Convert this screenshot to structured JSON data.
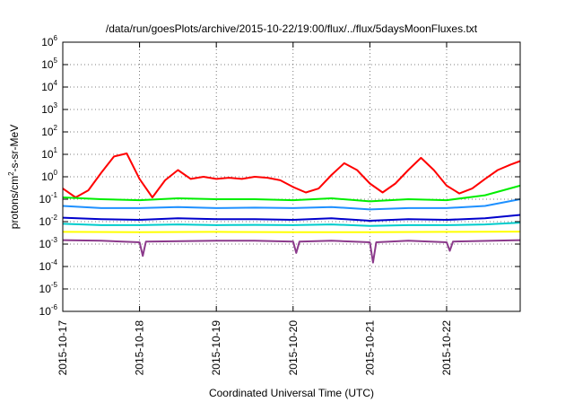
{
  "chart_data": {
    "type": "line",
    "title": "/data/run/goesPlots/archive/2015-10-22/19:00/flux/../flux/5daysMoonFluxes.txt",
    "xlabel": "Coordinated Universal Time (UTC)",
    "ylabel": "protons/cm2-s-sr-MeV",
    "yscale": "log",
    "ylim": [
      1e-06,
      1000000.0
    ],
    "xlim": [
      "2015-10-17",
      "2015-10-22 23:00"
    ],
    "x_ticks": [
      "2015-10-17",
      "2015-10-18",
      "2015-10-19",
      "2015-10-20",
      "2015-10-21",
      "2015-10-22"
    ],
    "y_ticks": [
      {
        "base": "10",
        "exp": "-6"
      },
      {
        "base": "10",
        "exp": "-5"
      },
      {
        "base": "10",
        "exp": "-4"
      },
      {
        "base": "10",
        "exp": "-3"
      },
      {
        "base": "10",
        "exp": "-2"
      },
      {
        "base": "10",
        "exp": "-1"
      },
      {
        "base": "10",
        "exp": "0"
      },
      {
        "base": "10",
        "exp": "1"
      },
      {
        "base": "10",
        "exp": "2"
      },
      {
        "base": "10",
        "exp": "3"
      },
      {
        "base": "10",
        "exp": "4"
      },
      {
        "base": "10",
        "exp": "5"
      },
      {
        "base": "10",
        "exp": "6"
      }
    ],
    "grid": true,
    "series": [
      {
        "color": "#ff0000",
        "points": [
          [
            "2015-10-17 00:00",
            0.3
          ],
          [
            "2015-10-17 04:00",
            0.12
          ],
          [
            "2015-10-17 08:00",
            0.25
          ],
          [
            "2015-10-17 12:00",
            1.5
          ],
          [
            "2015-10-17 16:00",
            8
          ],
          [
            "2015-10-17 20:00",
            11
          ],
          [
            "2015-10-18 00:00",
            0.8
          ],
          [
            "2015-10-18 04:00",
            0.12
          ],
          [
            "2015-10-18 08:00",
            0.7
          ],
          [
            "2015-10-18 12:00",
            2
          ],
          [
            "2015-10-18 16:00",
            0.8
          ],
          [
            "2015-10-18 20:00",
            1
          ],
          [
            "2015-10-19 00:00",
            0.8
          ],
          [
            "2015-10-19 04:00",
            0.9
          ],
          [
            "2015-10-19 08:00",
            0.8
          ],
          [
            "2015-10-19 12:00",
            1.0
          ],
          [
            "2015-10-19 16:00",
            0.9
          ],
          [
            "2015-10-19 20:00",
            0.7
          ],
          [
            "2015-10-20 00:00",
            0.35
          ],
          [
            "2015-10-20 04:00",
            0.2
          ],
          [
            "2015-10-20 08:00",
            0.3
          ],
          [
            "2015-10-20 12:00",
            1.2
          ],
          [
            "2015-10-20 16:00",
            4
          ],
          [
            "2015-10-20 20:00",
            2
          ],
          [
            "2015-10-21 00:00",
            0.5
          ],
          [
            "2015-10-21 04:00",
            0.2
          ],
          [
            "2015-10-21 08:00",
            0.5
          ],
          [
            "2015-10-21 12:00",
            2
          ],
          [
            "2015-10-21 16:00",
            7
          ],
          [
            "2015-10-21 20:00",
            2
          ],
          [
            "2015-10-22 00:00",
            0.4
          ],
          [
            "2015-10-22 04:00",
            0.18
          ],
          [
            "2015-10-22 08:00",
            0.3
          ],
          [
            "2015-10-22 12:00",
            0.8
          ],
          [
            "2015-10-22 16:00",
            2
          ],
          [
            "2015-10-22 20:00",
            3.5
          ],
          [
            "2015-10-22 23:00",
            5
          ]
        ]
      },
      {
        "color": "#00ee00",
        "points": [
          [
            "2015-10-17 00:00",
            0.12
          ],
          [
            "2015-10-17 12:00",
            0.1
          ],
          [
            "2015-10-18 00:00",
            0.09
          ],
          [
            "2015-10-18 12:00",
            0.11
          ],
          [
            "2015-10-19 00:00",
            0.1
          ],
          [
            "2015-10-19 12:00",
            0.1
          ],
          [
            "2015-10-20 00:00",
            0.09
          ],
          [
            "2015-10-20 12:00",
            0.11
          ],
          [
            "2015-10-21 00:00",
            0.08
          ],
          [
            "2015-10-21 12:00",
            0.1
          ],
          [
            "2015-10-22 00:00",
            0.09
          ],
          [
            "2015-10-22 12:00",
            0.15
          ],
          [
            "2015-10-22 23:00",
            0.4
          ]
        ]
      },
      {
        "color": "#1e90ff",
        "points": [
          [
            "2015-10-17 00:00",
            0.05
          ],
          [
            "2015-10-17 12:00",
            0.04
          ],
          [
            "2015-10-18 00:00",
            0.04
          ],
          [
            "2015-10-18 12:00",
            0.045
          ],
          [
            "2015-10-19 00:00",
            0.04
          ],
          [
            "2015-10-19 12:00",
            0.042
          ],
          [
            "2015-10-20 00:00",
            0.04
          ],
          [
            "2015-10-20 12:00",
            0.045
          ],
          [
            "2015-10-21 00:00",
            0.035
          ],
          [
            "2015-10-21 12:00",
            0.04
          ],
          [
            "2015-10-22 00:00",
            0.04
          ],
          [
            "2015-10-22 12:00",
            0.05
          ],
          [
            "2015-10-22 23:00",
            0.1
          ]
        ]
      },
      {
        "color": "#0000cc",
        "points": [
          [
            "2015-10-17 00:00",
            0.015
          ],
          [
            "2015-10-17 12:00",
            0.013
          ],
          [
            "2015-10-18 00:00",
            0.012
          ],
          [
            "2015-10-18 12:00",
            0.014
          ],
          [
            "2015-10-19 00:00",
            0.013
          ],
          [
            "2015-10-19 12:00",
            0.013
          ],
          [
            "2015-10-20 00:00",
            0.012
          ],
          [
            "2015-10-20 12:00",
            0.014
          ],
          [
            "2015-10-21 00:00",
            0.011
          ],
          [
            "2015-10-21 12:00",
            0.013
          ],
          [
            "2015-10-22 00:00",
            0.012
          ],
          [
            "2015-10-22 12:00",
            0.014
          ],
          [
            "2015-10-22 23:00",
            0.02
          ]
        ]
      },
      {
        "color": "#00cccc",
        "points": [
          [
            "2015-10-17 00:00",
            0.008
          ],
          [
            "2015-10-17 12:00",
            0.007
          ],
          [
            "2015-10-18 00:00",
            0.007
          ],
          [
            "2015-10-18 12:00",
            0.0075
          ],
          [
            "2015-10-19 00:00",
            0.007
          ],
          [
            "2015-10-19 12:00",
            0.0072
          ],
          [
            "2015-10-20 00:00",
            0.007
          ],
          [
            "2015-10-20 12:00",
            0.0075
          ],
          [
            "2015-10-21 00:00",
            0.0065
          ],
          [
            "2015-10-21 12:00",
            0.007
          ],
          [
            "2015-10-22 00:00",
            0.007
          ],
          [
            "2015-10-22 12:00",
            0.0075
          ],
          [
            "2015-10-22 23:00",
            0.009
          ]
        ]
      },
      {
        "color": "#ffff00",
        "points": [
          [
            "2015-10-17 00:00",
            0.0035
          ],
          [
            "2015-10-18 00:00",
            0.0034
          ],
          [
            "2015-10-19 00:00",
            0.0035
          ],
          [
            "2015-10-20 00:00",
            0.0034
          ],
          [
            "2015-10-21 00:00",
            0.0034
          ],
          [
            "2015-10-22 00:00",
            0.0035
          ],
          [
            "2015-10-22 23:00",
            0.0036
          ]
        ]
      },
      {
        "color": "#8b3a8b",
        "points": [
          [
            "2015-10-17 00:00",
            0.0015
          ],
          [
            "2015-10-17 12:00",
            0.0014
          ],
          [
            "2015-10-18 00:00",
            0.0012
          ],
          [
            "2015-10-18 01:00",
            0.0003
          ],
          [
            "2015-10-18 02:00",
            0.0013
          ],
          [
            "2015-10-19 00:00",
            0.0014
          ],
          [
            "2015-10-19 12:00",
            0.0014
          ],
          [
            "2015-10-20 00:00",
            0.0013
          ],
          [
            "2015-10-20 01:00",
            0.0004
          ],
          [
            "2015-10-20 02:00",
            0.0013
          ],
          [
            "2015-10-20 12:00",
            0.0014
          ],
          [
            "2015-10-21 00:00",
            0.0012
          ],
          [
            "2015-10-21 01:00",
            0.00015
          ],
          [
            "2015-10-21 02:00",
            0.0012
          ],
          [
            "2015-10-21 12:00",
            0.0014
          ],
          [
            "2015-10-22 00:00",
            0.0012
          ],
          [
            "2015-10-22 01:00",
            0.0005
          ],
          [
            "2015-10-22 02:00",
            0.0013
          ],
          [
            "2015-10-22 23:00",
            0.0015
          ]
        ]
      }
    ]
  }
}
